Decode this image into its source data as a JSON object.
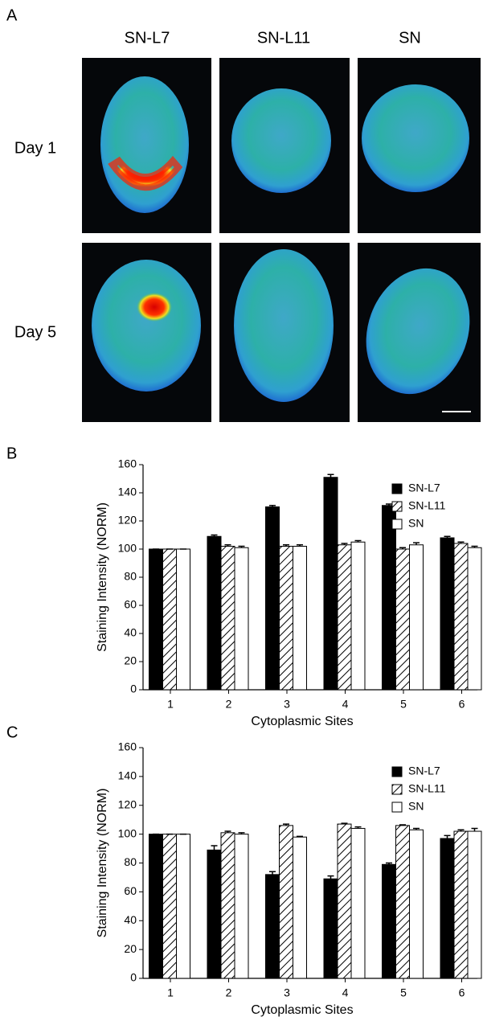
{
  "figure_a": {
    "label": "A",
    "columns": [
      "SN-L7",
      "SN-L11",
      "SN"
    ],
    "rows": [
      "Day 1",
      "Day 5"
    ]
  },
  "chart_data": [
    {
      "type": "bar",
      "panel_label": "B",
      "x_label": "Cytoplasmic Sites",
      "y_label": "Staining Intensity (NORM)",
      "categories": [
        "1",
        "2",
        "3",
        "4",
        "5",
        "6"
      ],
      "series": [
        {
          "name": "SN-L7",
          "color": "#000000",
          "values": [
            100,
            109,
            130,
            151,
            131,
            108
          ],
          "errors": [
            0,
            1,
            1,
            2,
            1,
            1
          ]
        },
        {
          "name": "SN-L11",
          "color": "#ffffff",
          "hatch": "diagonal",
          "values": [
            100,
            102,
            102,
            103,
            100,
            104
          ],
          "errors": [
            0,
            1,
            1,
            1,
            1,
            1
          ]
        },
        {
          "name": "SN",
          "color": "#ffffff",
          "values": [
            100,
            101,
            102,
            105,
            103,
            101
          ],
          "errors": [
            0,
            1,
            1,
            1,
            1.5,
            1
          ]
        }
      ],
      "ylim": [
        0,
        160
      ],
      "yticks": [
        0,
        20,
        40,
        60,
        80,
        100,
        120,
        140,
        160
      ],
      "legend": "upper right"
    },
    {
      "type": "bar",
      "panel_label": "C",
      "x_label": "Cytoplasmic Sites",
      "y_label": "Staining Intensity (NORM)",
      "categories": [
        "1",
        "2",
        "3",
        "4",
        "5",
        "6"
      ],
      "series": [
        {
          "name": "SN-L7",
          "color": "#000000",
          "values": [
            100,
            89,
            72,
            69,
            79,
            97
          ],
          "errors": [
            0,
            3,
            2,
            2,
            1,
            2
          ]
        },
        {
          "name": "SN-L11",
          "color": "#ffffff",
          "hatch": "diagonal",
          "values": [
            100,
            101,
            106,
            107,
            106,
            102
          ],
          "errors": [
            0,
            1,
            1,
            0.5,
            0.5,
            1
          ]
        },
        {
          "name": "SN",
          "color": "#ffffff",
          "values": [
            100,
            100,
            98,
            104,
            103,
            102
          ],
          "errors": [
            0,
            1,
            0.5,
            1,
            1,
            2
          ]
        }
      ],
      "ylim": [
        0,
        160
      ],
      "yticks": [
        0,
        20,
        40,
        60,
        80,
        100,
        120,
        140,
        160
      ],
      "legend": "upper right"
    }
  ]
}
